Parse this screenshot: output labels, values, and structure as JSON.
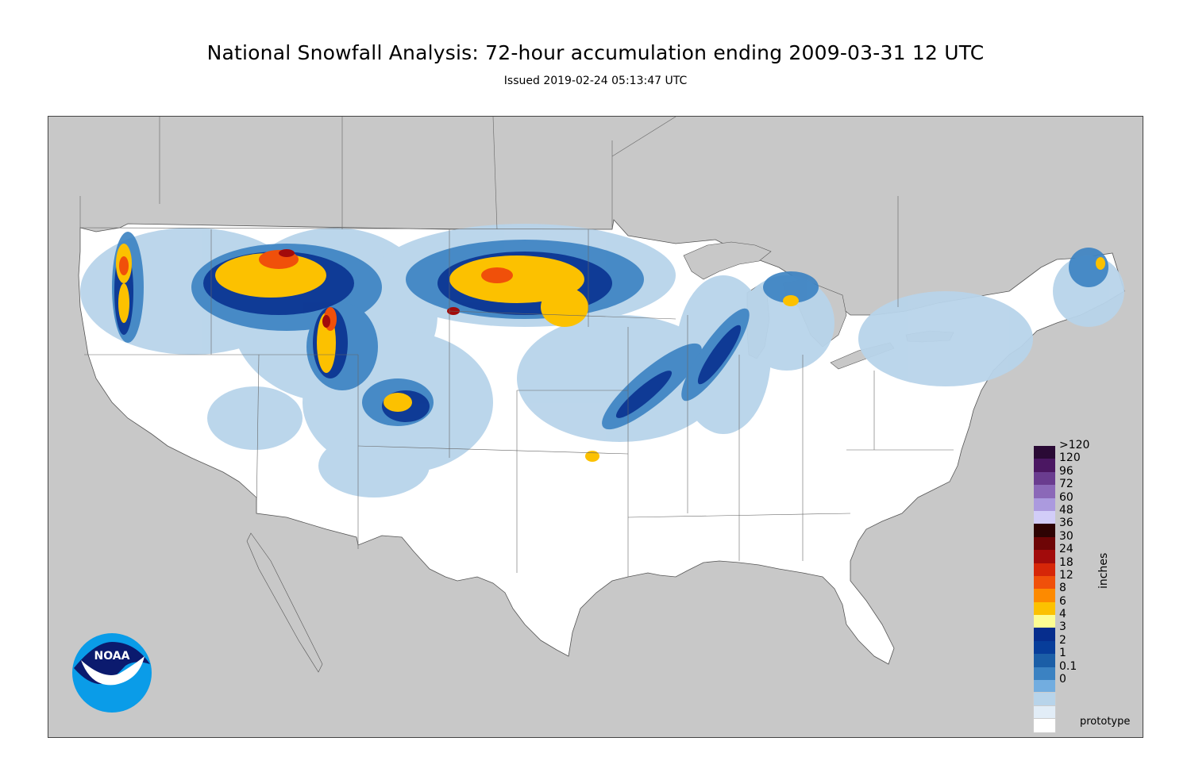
{
  "header": {
    "title": "National Snowfall Analysis: 72-hour accumulation ending 2009-03-31 12 UTC",
    "subtitle": "Issued 2019-02-24 05:13:47 UTC"
  },
  "legend": {
    "unit": "inches",
    "items": [
      {
        "label": ">120",
        "color": "#2a0a35"
      },
      {
        "label": "120",
        "color": "#4b1762"
      },
      {
        "label": "96",
        "color": "#6a3c8f"
      },
      {
        "label": "72",
        "color": "#8b68b8"
      },
      {
        "label": "60",
        "color": "#ab9ade"
      },
      {
        "label": "48",
        "color": "#d2cdf8"
      },
      {
        "label": "36",
        "color": "#2e0303"
      },
      {
        "label": "30",
        "color": "#6e0506"
      },
      {
        "label": "24",
        "color": "#a20b0b"
      },
      {
        "label": "18",
        "color": "#d62608"
      },
      {
        "label": "12",
        "color": "#f0500a"
      },
      {
        "label": "8",
        "color": "#fd8a00"
      },
      {
        "label": "6",
        "color": "#fcc100"
      },
      {
        "label": "4",
        "color": "#fdfd92"
      },
      {
        "label": "3",
        "color": "#062d8d"
      },
      {
        "label": "2",
        "color": "#073d9a"
      },
      {
        "label": "1",
        "color": "#1b5ea7"
      },
      {
        "label": "0.1",
        "color": "#3b82c2"
      },
      {
        "label": "0",
        "color": "#72ade0"
      }
    ],
    "extra_swatches": [
      "#b8d4ea",
      "#e2edf7",
      "#ffffff"
    ]
  },
  "footer": {
    "note": "prototype"
  },
  "logo": {
    "text": "NOAA"
  },
  "colors": {
    "map_background": "#c8c8c8",
    "land": "#ffffff",
    "border": "#555555"
  }
}
